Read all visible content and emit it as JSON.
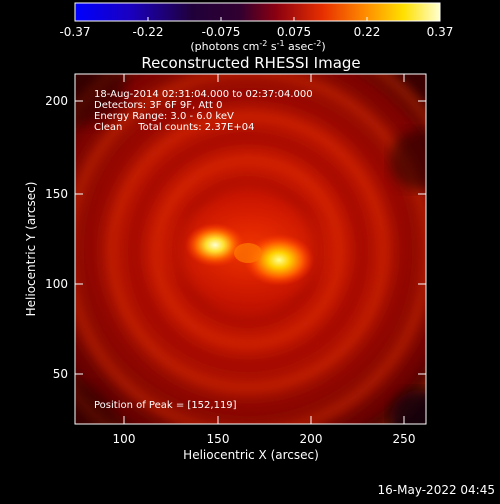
{
  "colorbar": {
    "ticks": [
      "-0.37",
      "-0.22",
      "-0.075",
      "0.075",
      "0.22",
      "0.37"
    ],
    "units_prefix": "(photons cm",
    "units_exp1": "-2",
    "units_mid": " s",
    "units_exp2": "-1",
    "units_mid2": " asec",
    "units_exp3": "-2",
    "units_suffix": ")"
  },
  "image": {
    "title": "Reconstructed RHESSI Image",
    "info_lines": [
      "18-Aug-2014 02:31:04.000 to 02:37:04.000",
      "Detectors: 3F 6F 9F, Att 0",
      "Energy Range: 3.0 - 6.0 keV",
      "Clean     Total counts: 2.37E+04"
    ],
    "peak_text": "Position of Peak = [152,119]",
    "xlabel": "Heliocentric X (arcsec)",
    "ylabel": "Heliocentric Y (arcsec)",
    "xticks": [
      "100",
      "150",
      "200",
      "250"
    ],
    "yticks": [
      "50",
      "100",
      "150",
      "200"
    ],
    "timestamp": "16-May-2022 04:45"
  }
}
